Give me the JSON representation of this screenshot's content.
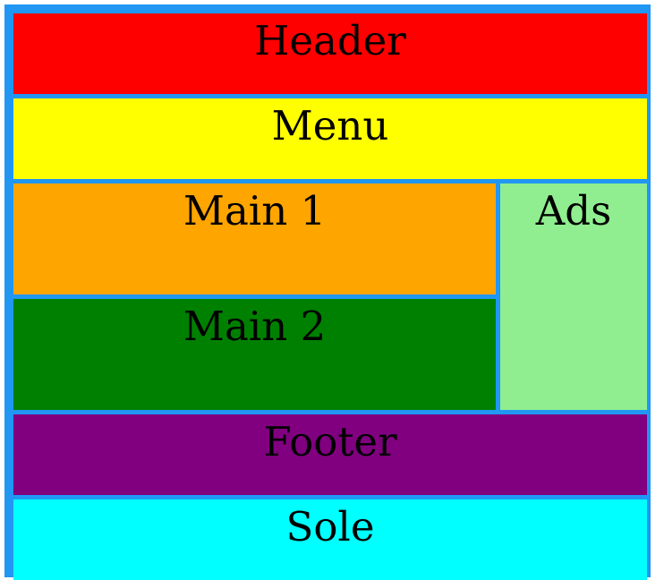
{
  "colors": {
    "container": "#2196f3",
    "header": "#ff0000",
    "menu": "#ffff00",
    "main1": "#ffa500",
    "main2": "#008000",
    "ads": "#90ee90",
    "footer": "#800080",
    "sole": "#00ffff"
  },
  "areas": {
    "header": "Header",
    "menu": "Menu",
    "main1": "Main 1",
    "main2": "Main 2",
    "ads": "Ads",
    "footer": "Footer",
    "sole": "Sole"
  }
}
